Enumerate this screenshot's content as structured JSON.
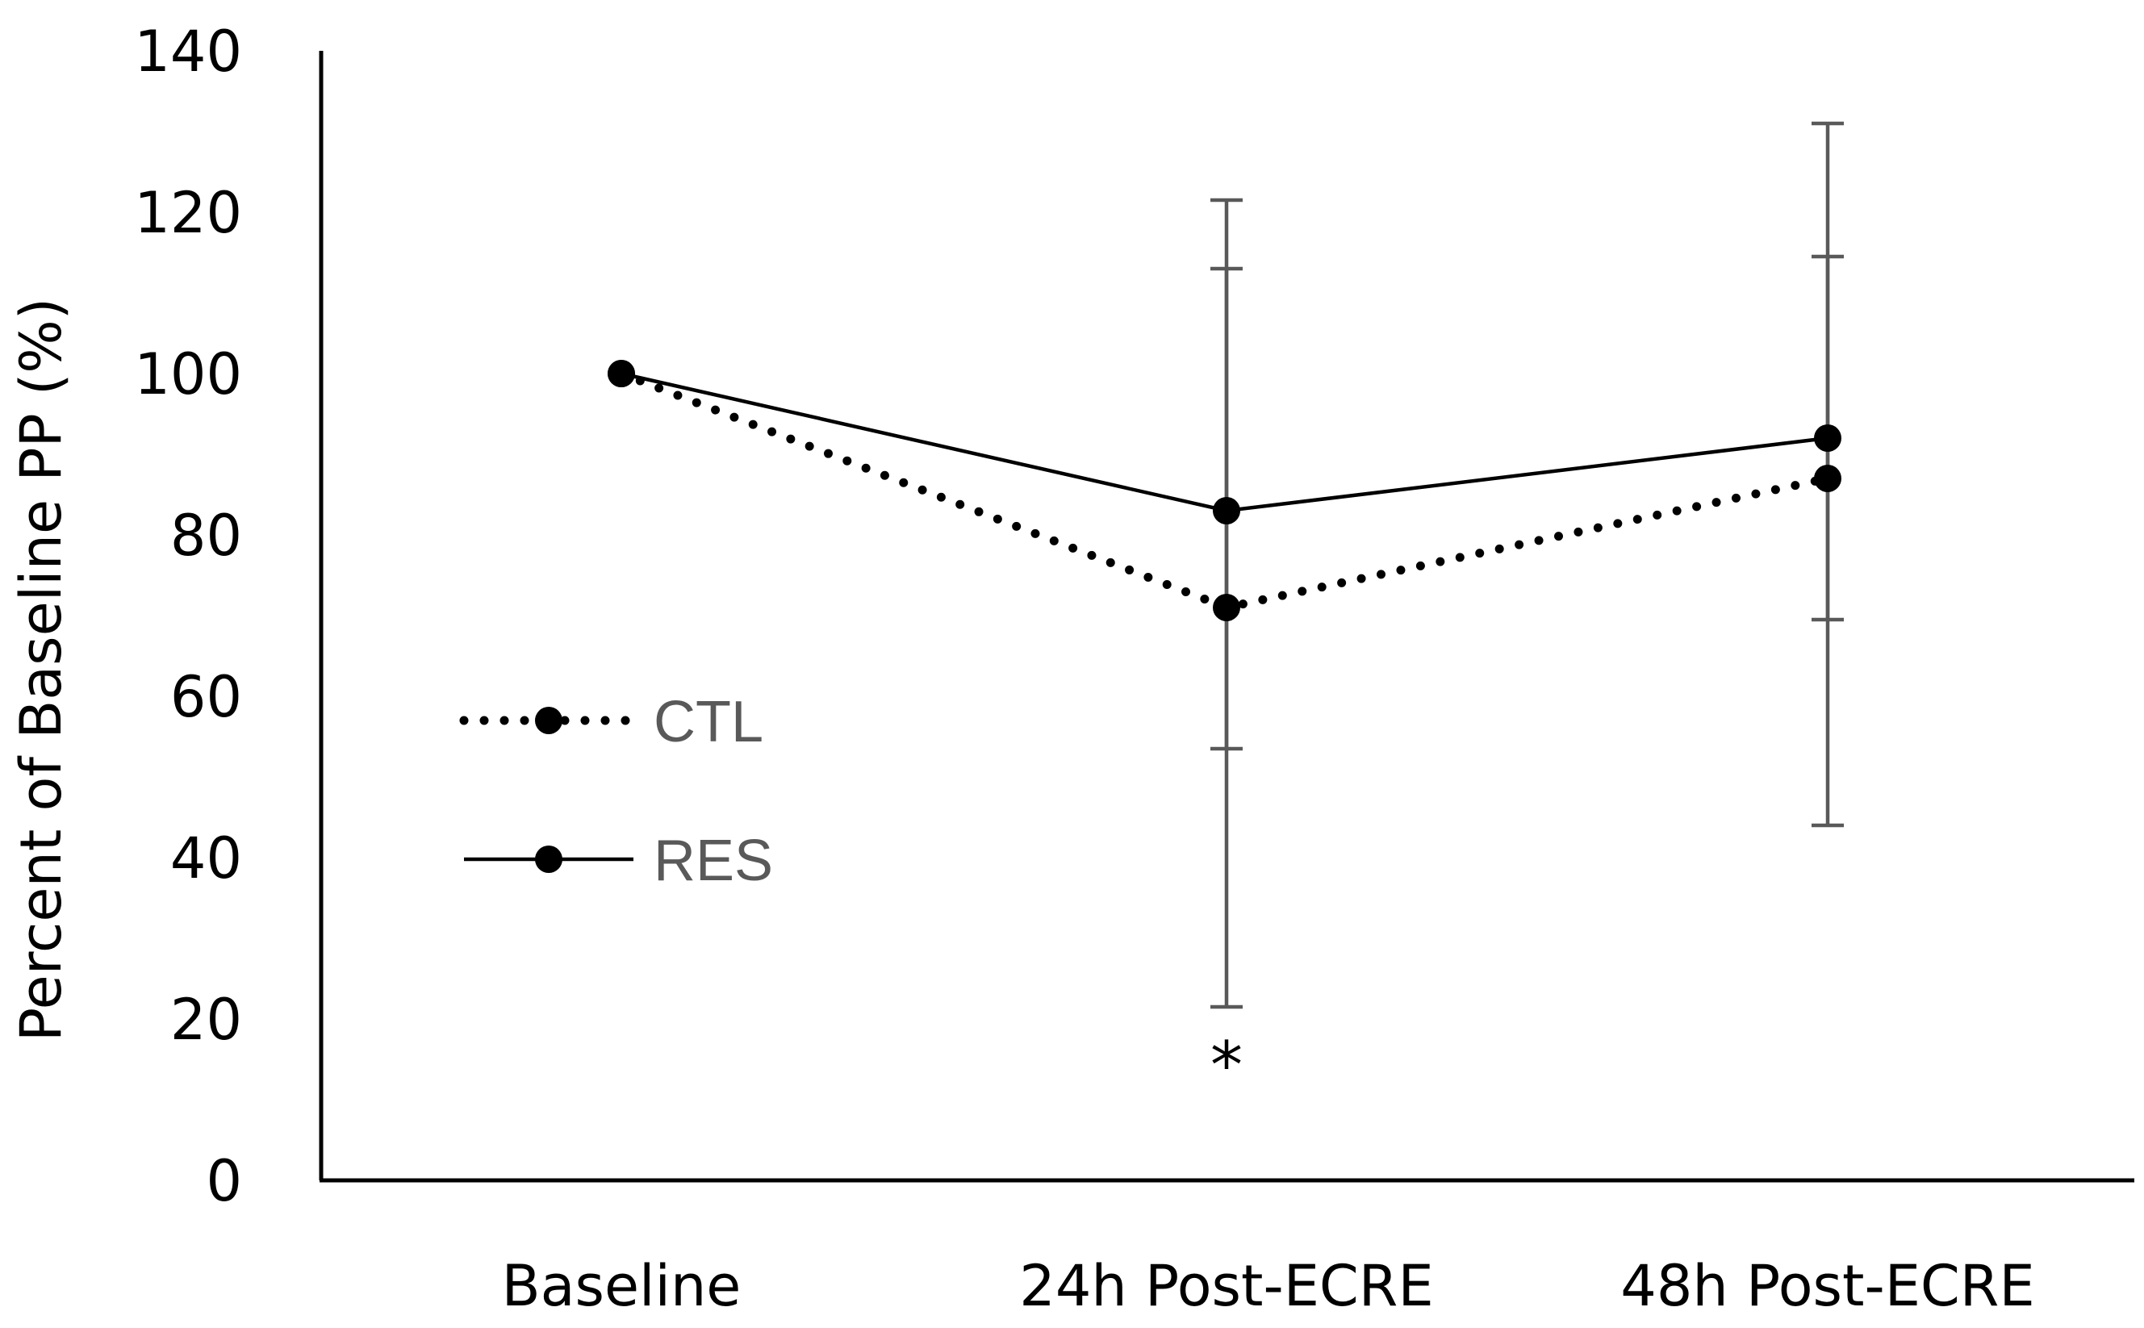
{
  "chart_data": {
    "type": "line",
    "title": "",
    "xlabel": "",
    "ylabel": "Percent of Baseline PP (%)",
    "ylim": [
      0,
      140
    ],
    "yticks": [
      0,
      20,
      40,
      60,
      80,
      100,
      120,
      140
    ],
    "categories": [
      "Baseline",
      "24h Post-ECRE",
      "48h Post-ECRE"
    ],
    "series": [
      {
        "name": "CTL",
        "style": "dotted",
        "values": [
          100,
          71,
          87
        ],
        "error": [
          null,
          [
            21.5,
            121.5
          ],
          [
            44,
            131
          ]
        ]
      },
      {
        "name": "RES",
        "style": "solid",
        "values": [
          100,
          83,
          92
        ],
        "error": [
          null,
          [
            53.5,
            113
          ],
          [
            69.5,
            114.5
          ]
        ]
      }
    ],
    "annotations": [
      {
        "text": "*",
        "category": "24h Post-ECRE",
        "y": 17
      }
    ],
    "legend_position": "left",
    "grid": false,
    "colors": {
      "line": "#000000",
      "error_bar": "#595959",
      "legend_text": "#595959"
    }
  }
}
